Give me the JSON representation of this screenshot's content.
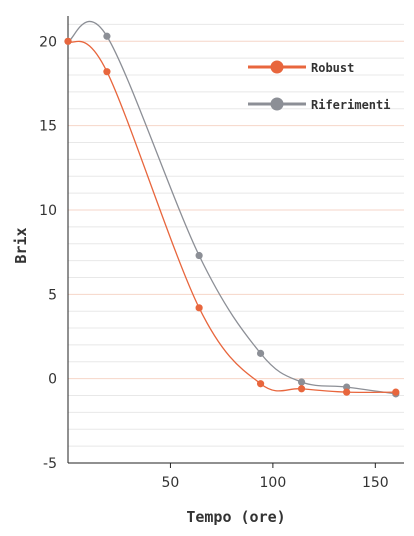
{
  "colors": {
    "robust": "#e8663d",
    "riferimenti": "#8c8f96",
    "major_grid": "#f6d6c8",
    "minor_grid": "#e8e8e8",
    "axis": "#222222"
  },
  "chart_data": {
    "type": "line",
    "xlabel": "Tempo (ore)",
    "ylabel": "Brix",
    "xlim": [
      0,
      164
    ],
    "ylim": [
      -5,
      21.5
    ],
    "x_ticks": [
      50,
      100,
      150
    ],
    "y_ticks": [
      -5,
      0,
      5,
      10,
      15,
      20
    ],
    "x_tick_labels": [
      "50",
      "100",
      "150"
    ],
    "y_tick_labels": [
      "-5",
      "0",
      "5",
      "10",
      "15",
      "20"
    ],
    "grid": true,
    "legend": "top-right",
    "series": [
      {
        "name": "Robust",
        "color": "#e8663d",
        "x": [
          0,
          19,
          64,
          94,
          114,
          136,
          160
        ],
        "y": [
          20.0,
          18.2,
          4.2,
          -0.3,
          -0.6,
          -0.8,
          -0.8
        ]
      },
      {
        "name": "Riferimenti",
        "color": "#8c8f96",
        "x": [
          0,
          19,
          64,
          94,
          114,
          136,
          160
        ],
        "y": [
          20.0,
          20.3,
          7.3,
          1.5,
          -0.2,
          -0.5,
          -0.9
        ]
      }
    ]
  }
}
